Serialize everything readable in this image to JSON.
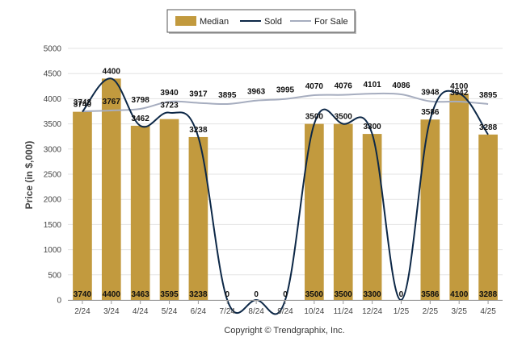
{
  "chart_data": {
    "type": "bar",
    "categories": [
      "2/24",
      "3/24",
      "4/24",
      "5/24",
      "6/24",
      "7/24",
      "8/24",
      "9/24",
      "10/24",
      "11/24",
      "12/24",
      "1/25",
      "2/25",
      "3/25",
      "4/25"
    ],
    "series": [
      {
        "name": "Median",
        "type": "bar",
        "color": "#c29a3e",
        "values": [
          3740,
          4400,
          3463,
          3595,
          3238,
          0,
          0,
          0,
          3500,
          3500,
          3300,
          0,
          3586,
          4100,
          3288
        ]
      },
      {
        "name": "Sold",
        "type": "line",
        "color": "#0d2847",
        "values": [
          3740,
          4400,
          3462,
          3723,
          3238,
          0,
          0,
          0,
          3500,
          3500,
          3300,
          0,
          3586,
          4100,
          3288
        ]
      },
      {
        "name": "For Sale",
        "type": "line",
        "color": "#a6adbf",
        "values": [
          3748,
          3767,
          3798,
          3940,
          3917,
          3895,
          3963,
          3995,
          4070,
          4076,
          4101,
          4086,
          3948,
          3942,
          3895
        ]
      }
    ],
    "xlabel": "",
    "ylabel": "Price (in $,000)",
    "ylim": [
      0,
      5000
    ],
    "yticks": [
      0,
      500,
      1000,
      1500,
      2000,
      2500,
      3000,
      3500,
      4000,
      4500,
      5000
    ],
    "grid": true,
    "legend_position": "top-center"
  },
  "footer": {
    "copyright": "Copyright © Trendgraphix, Inc."
  }
}
